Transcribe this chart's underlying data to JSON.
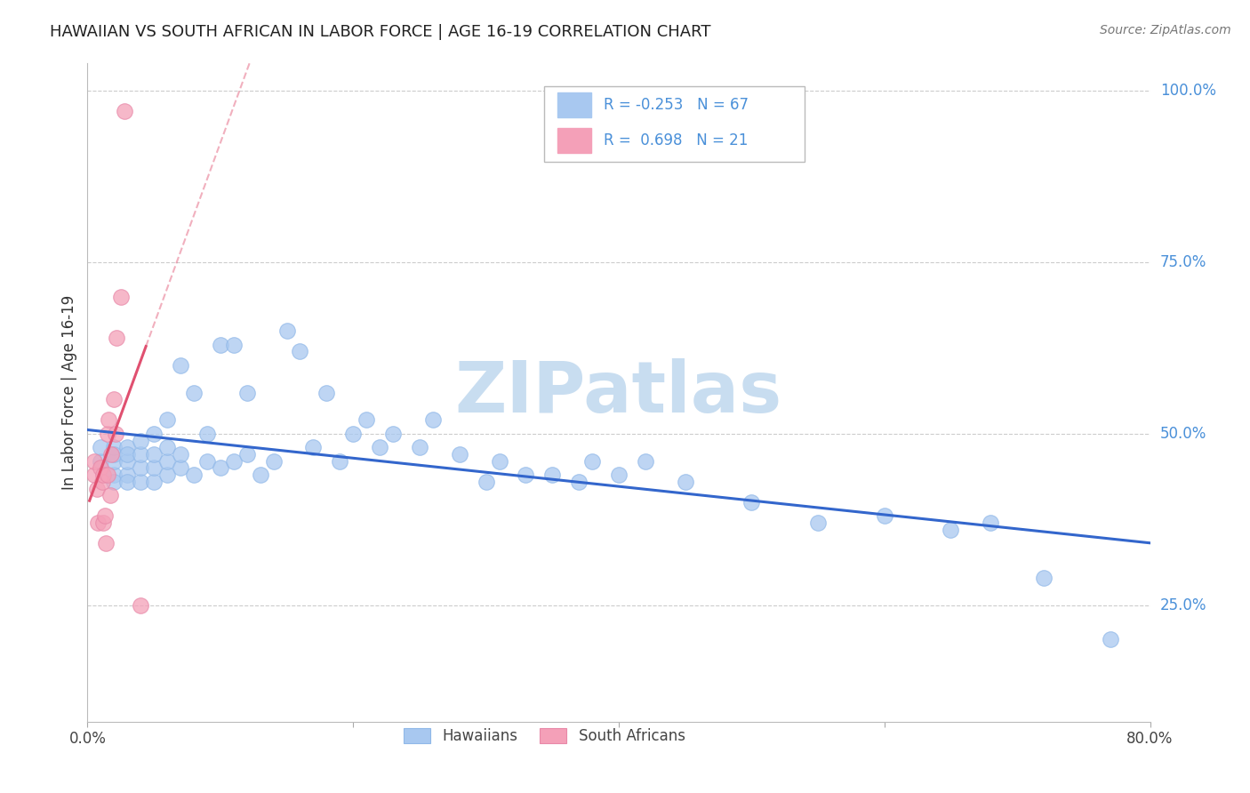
{
  "title": "HAWAIIAN VS SOUTH AFRICAN IN LABOR FORCE | AGE 16-19 CORRELATION CHART",
  "source": "Source: ZipAtlas.com",
  "ylabel": "In Labor Force | Age 16-19",
  "xlim": [
    0.0,
    0.8
  ],
  "ylim": [
    0.08,
    1.04
  ],
  "xticks": [
    0.0,
    0.2,
    0.4,
    0.6,
    0.8
  ],
  "xtick_labels": [
    "0.0%",
    "",
    "",
    "",
    "80.0%"
  ],
  "ytick_labels_right": [
    "100.0%",
    "75.0%",
    "50.0%",
    "25.0%"
  ],
  "ytick_positions_right": [
    1.0,
    0.75,
    0.5,
    0.25
  ],
  "hawaiian_color": "#A8C8F0",
  "southafrican_color": "#F4A0B8",
  "trend_hawaiian_color": "#3366CC",
  "trend_southafrican_color": "#E05070",
  "R_hawaiian": -0.253,
  "N_hawaiian": 67,
  "R_southafrican": 0.698,
  "N_southafrican": 21,
  "hawaiian_x": [
    0.01,
    0.01,
    0.02,
    0.02,
    0.02,
    0.02,
    0.02,
    0.03,
    0.03,
    0.03,
    0.03,
    0.03,
    0.04,
    0.04,
    0.04,
    0.04,
    0.05,
    0.05,
    0.05,
    0.05,
    0.06,
    0.06,
    0.06,
    0.06,
    0.07,
    0.07,
    0.07,
    0.08,
    0.08,
    0.09,
    0.09,
    0.1,
    0.1,
    0.11,
    0.11,
    0.12,
    0.12,
    0.13,
    0.14,
    0.15,
    0.16,
    0.17,
    0.18,
    0.19,
    0.2,
    0.21,
    0.22,
    0.23,
    0.25,
    0.26,
    0.28,
    0.3,
    0.31,
    0.33,
    0.35,
    0.37,
    0.38,
    0.4,
    0.42,
    0.45,
    0.5,
    0.55,
    0.6,
    0.65,
    0.68,
    0.72,
    0.77
  ],
  "hawaiian_y": [
    0.46,
    0.48,
    0.44,
    0.46,
    0.48,
    0.43,
    0.47,
    0.44,
    0.46,
    0.48,
    0.43,
    0.47,
    0.43,
    0.45,
    0.47,
    0.49,
    0.43,
    0.45,
    0.47,
    0.5,
    0.44,
    0.46,
    0.48,
    0.52,
    0.45,
    0.47,
    0.6,
    0.44,
    0.56,
    0.46,
    0.5,
    0.45,
    0.63,
    0.46,
    0.63,
    0.47,
    0.56,
    0.44,
    0.46,
    0.65,
    0.62,
    0.48,
    0.56,
    0.46,
    0.5,
    0.52,
    0.48,
    0.5,
    0.48,
    0.52,
    0.47,
    0.43,
    0.46,
    0.44,
    0.44,
    0.43,
    0.46,
    0.44,
    0.46,
    0.43,
    0.4,
    0.37,
    0.38,
    0.36,
    0.37,
    0.29,
    0.2
  ],
  "southafrican_x": [
    0.005,
    0.005,
    0.007,
    0.008,
    0.01,
    0.011,
    0.012,
    0.012,
    0.013,
    0.014,
    0.015,
    0.015,
    0.016,
    0.017,
    0.018,
    0.02,
    0.021,
    0.022,
    0.025,
    0.028,
    0.04
  ],
  "southafrican_y": [
    0.44,
    0.46,
    0.42,
    0.37,
    0.45,
    0.43,
    0.44,
    0.37,
    0.38,
    0.34,
    0.5,
    0.44,
    0.52,
    0.41,
    0.47,
    0.55,
    0.5,
    0.64,
    0.7,
    0.97,
    0.25
  ],
  "background_color": "#FFFFFF",
  "grid_color": "#CCCCCC",
  "watermark": "ZIPatlas",
  "watermark_color": "#C8DDF0"
}
